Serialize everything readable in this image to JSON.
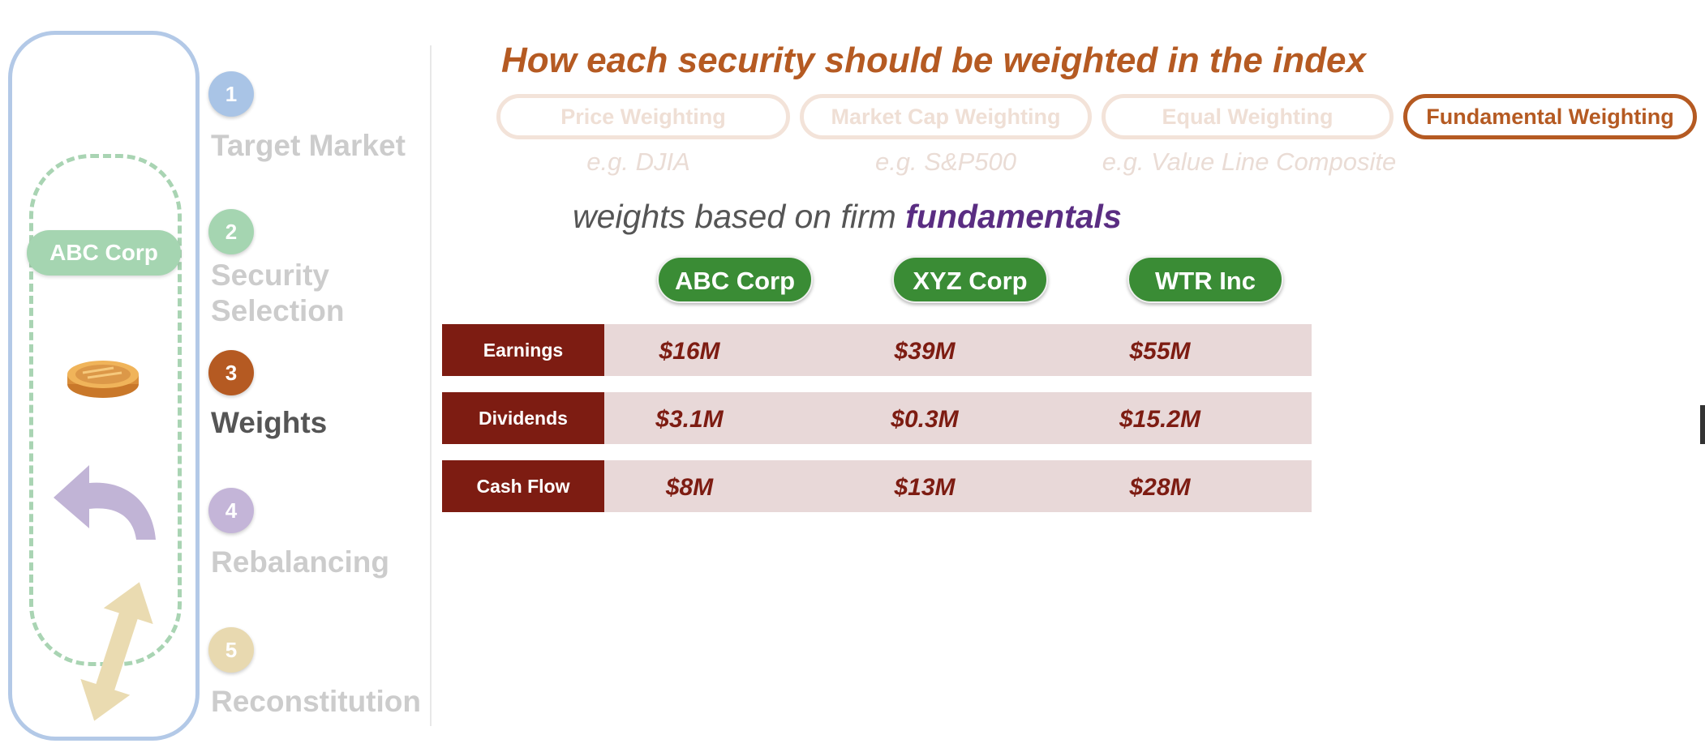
{
  "left_panel": {
    "tag": "ABC Corp"
  },
  "steps": [
    {
      "number": "1",
      "label": "Target Market",
      "color": "#a9c4e6",
      "active": false
    },
    {
      "number": "2",
      "label": "Security\nSelection",
      "color": "#a5d5b1",
      "active": false
    },
    {
      "number": "3",
      "label": "Weights",
      "color": "#b55a22",
      "active": true
    },
    {
      "number": "4",
      "label": "Rebalancing",
      "color": "#c4b5d8",
      "active": false
    },
    {
      "number": "5",
      "label": "Reconstitution",
      "color": "#e8d9b0",
      "active": false
    }
  ],
  "main": {
    "title": "How each security should be weighted in the index",
    "methods": [
      {
        "label": "Price Weighting",
        "example": "e.g. DJIA",
        "active": false
      },
      {
        "label": "Market Cap Weighting",
        "example": "e.g. S&P500",
        "active": false
      },
      {
        "label": "Equal Weighting",
        "example": "e.g. Value Line Composite",
        "active": false
      },
      {
        "label": "Fundamental Weighting",
        "example": "",
        "active": true
      }
    ],
    "subtitle_prefix": "weights based on firm ",
    "subtitle_emphasis": "fundamentals",
    "companies": [
      "ABC Corp",
      "XYZ Corp",
      "WTR Inc"
    ],
    "rows": [
      {
        "label": "Earnings",
        "values": [
          "$16M",
          "$39M",
          "$55M"
        ]
      },
      {
        "label": "Dividends",
        "values": [
          "$3.1M",
          "$0.3M",
          "$15.2M"
        ]
      },
      {
        "label": "Cash Flow",
        "values": [
          "$8M",
          "$13M",
          "$28M"
        ]
      }
    ]
  },
  "colors": {
    "accent": "#b55a22",
    "company_green": "#3a8c35",
    "row_label_bg": "#7d1c12",
    "row_bg": "#e8d8d8",
    "emphasis_purple": "#5a2d82"
  }
}
